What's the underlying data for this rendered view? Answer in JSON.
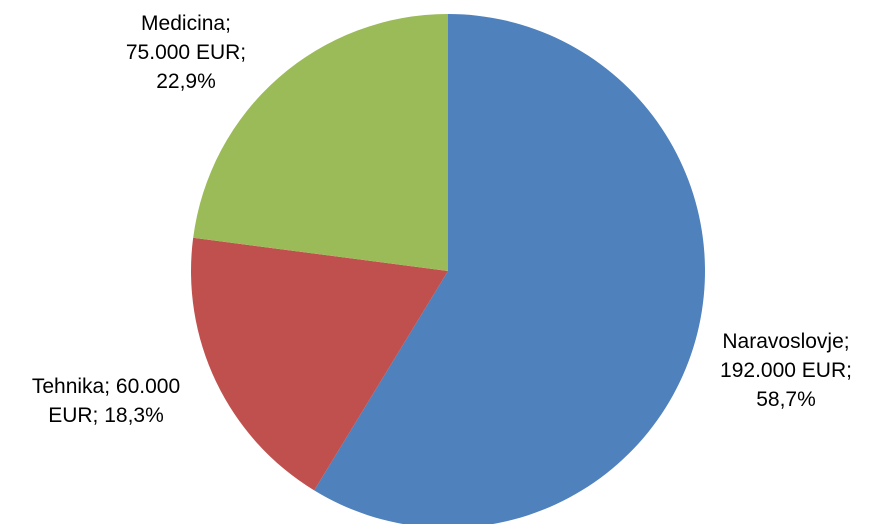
{
  "chart_data": {
    "type": "pie",
    "title": "",
    "legend": "none",
    "slices": [
      {
        "name": "Naravoslovje",
        "value": 192000,
        "percent": 58.7,
        "color": "#4F81BD",
        "label_lines": [
          "Naravoslovje;",
          "192.000  EUR;",
          "58,7%"
        ]
      },
      {
        "name": "Tehnika",
        "value": 60000,
        "percent": 18.3,
        "color": "#C0504D",
        "label_lines": [
          "Tehnika; 60.000",
          "EUR; 18,3%"
        ]
      },
      {
        "name": "Medicina",
        "value": 75000,
        "percent": 22.9,
        "color": "#9BBB59",
        "label_lines": [
          "Medicina;",
          "75.000  EUR;",
          "22,9%"
        ]
      }
    ]
  }
}
